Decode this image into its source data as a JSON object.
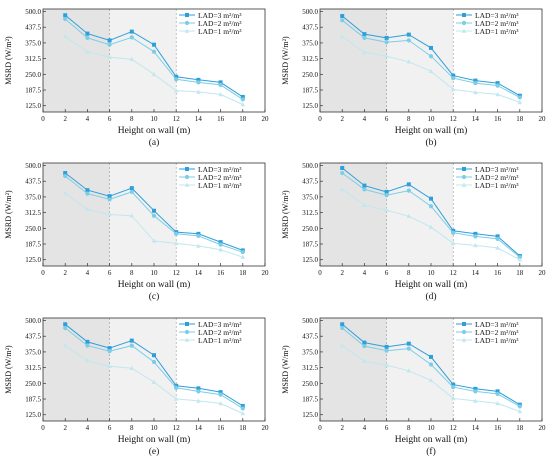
{
  "chart_data": [
    {
      "type": "line",
      "panel_label": "(a)",
      "xlabel": "Height on wall (m)",
      "ylabel": "MSRD (W/m²)",
      "xlim": [
        0,
        20
      ],
      "ylim": [
        100,
        510
      ],
      "xticks": [
        "0",
        "2",
        "4",
        "6",
        "8",
        "10",
        "12",
        "14",
        "16",
        "18",
        "20"
      ],
      "yticks": [
        "125.0",
        "187.5",
        "250.0",
        "312.5",
        "375.0",
        "437.5",
        "500.0"
      ],
      "x": [
        2,
        4,
        6,
        8,
        10,
        12,
        14,
        16,
        18
      ],
      "series": [
        {
          "name": "LAD=3 m²/m³",
          "values": [
            485,
            412,
            385,
            420,
            368,
            240,
            228,
            218,
            160
          ]
        },
        {
          "name": "LAD=2 m²/m³",
          "values": [
            470,
            395,
            368,
            397,
            340,
            230,
            218,
            208,
            150
          ]
        },
        {
          "name": "LAD=1 m²/m³",
          "values": [
            400,
            340,
            318,
            310,
            250,
            185,
            180,
            170,
            130
          ]
        }
      ]
    },
    {
      "type": "line",
      "panel_label": "(b)",
      "xlabel": "Height on wall (m)",
      "ylabel": "MSRD (W/m²)",
      "xlim": [
        0,
        20
      ],
      "ylim": [
        100,
        510
      ],
      "xticks": [
        "0",
        "2",
        "4",
        "6",
        "8",
        "10",
        "12",
        "14",
        "16",
        "18",
        "20"
      ],
      "yticks": [
        "125.0",
        "187.5",
        "250.0",
        "312.5",
        "375.0",
        "437.5",
        "500.0"
      ],
      "x": [
        2,
        4,
        6,
        8,
        10,
        12,
        14,
        16,
        18
      ],
      "series": [
        {
          "name": "LAD=3 m²/m³",
          "values": [
            482,
            410,
            395,
            408,
            355,
            245,
            225,
            215,
            165
          ]
        },
        {
          "name": "LAD=2 m²/m³",
          "values": [
            465,
            395,
            378,
            385,
            322,
            235,
            215,
            205,
            158
          ]
        },
        {
          "name": "LAD=1 m²/m³",
          "values": [
            400,
            338,
            322,
            300,
            262,
            190,
            178,
            170,
            138
          ]
        }
      ]
    },
    {
      "type": "line",
      "panel_label": "(c)",
      "xlabel": "Height on wall (m)",
      "ylabel": "MSRD (W/m²)",
      "xlim": [
        0,
        20
      ],
      "ylim": [
        100,
        510
      ],
      "xticks": [
        "0",
        "2",
        "4",
        "6",
        "8",
        "10",
        "12",
        "14",
        "16",
        "18",
        "20"
      ],
      "yticks": [
        "125.0",
        "187.5",
        "250.0",
        "312.5",
        "375.0",
        "437.5",
        "500.0"
      ],
      "x": [
        2,
        4,
        6,
        8,
        10,
        12,
        14,
        16,
        18
      ],
      "series": [
        {
          "name": "LAD=3 m²/m³",
          "values": [
            470,
            402,
            378,
            410,
            320,
            235,
            228,
            195,
            162
          ]
        },
        {
          "name": "LAD=2 m²/m³",
          "values": [
            458,
            388,
            365,
            395,
            300,
            228,
            220,
            185,
            155
          ]
        },
        {
          "name": "LAD=1 m²/m³",
          "values": [
            390,
            325,
            305,
            300,
            200,
            190,
            180,
            165,
            135
          ]
        }
      ]
    },
    {
      "type": "line",
      "panel_label": "(d)",
      "xlabel": "Height on wall (m)",
      "ylabel": "MSRD (W/m²)",
      "xlim": [
        0,
        20
      ],
      "ylim": [
        100,
        510
      ],
      "xticks": [
        "0",
        "2",
        "4",
        "6",
        "8",
        "10",
        "12",
        "14",
        "16",
        "18",
        "20"
      ],
      "yticks": [
        "125.0",
        "187.5",
        "250.0",
        "312.5",
        "375.0",
        "437.5",
        "500.0"
      ],
      "x": [
        2,
        4,
        6,
        8,
        10,
        12,
        14,
        16,
        18
      ],
      "series": [
        {
          "name": "LAD=3 m²/m³",
          "values": [
            490,
            420,
            395,
            425,
            368,
            240,
            228,
            218,
            140
          ]
        },
        {
          "name": "LAD=2 m²/m³",
          "values": [
            470,
            405,
            382,
            400,
            338,
            232,
            218,
            208,
            135
          ]
        },
        {
          "name": "LAD=1 m²/m³",
          "values": [
            405,
            342,
            322,
            298,
            255,
            190,
            182,
            172,
            125
          ]
        }
      ]
    },
    {
      "type": "line",
      "panel_label": "(e)",
      "xlabel": "Height on wall (m)",
      "ylabel": "MSRD (W/m²)",
      "xlim": [
        0,
        20
      ],
      "ylim": [
        100,
        510
      ],
      "xticks": [
        "0",
        "2",
        "4",
        "6",
        "8",
        "10",
        "12",
        "14",
        "16",
        "18",
        "20"
      ],
      "yticks": [
        "125.0",
        "187.5",
        "250.0",
        "312.5",
        "375.0",
        "437.5",
        "500.0"
      ],
      "x": [
        2,
        4,
        6,
        8,
        10,
        12,
        14,
        16,
        18
      ],
      "series": [
        {
          "name": "LAD=3 m²/m³",
          "values": [
            485,
            415,
            390,
            420,
            362,
            240,
            230,
            215,
            160
          ]
        },
        {
          "name": "LAD=2 m²/m³",
          "values": [
            470,
            400,
            378,
            400,
            335,
            232,
            218,
            205,
            150
          ]
        },
        {
          "name": "LAD=1 m²/m³",
          "values": [
            400,
            340,
            318,
            310,
            255,
            188,
            180,
            170,
            130
          ]
        }
      ]
    },
    {
      "type": "line",
      "panel_label": "(f)",
      "xlabel": "Height on wall (m)",
      "ylabel": "MSRD (W/m²)",
      "xlim": [
        0,
        20
      ],
      "ylim": [
        100,
        510
      ],
      "xticks": [
        "0",
        "2",
        "4",
        "6",
        "8",
        "10",
        "12",
        "14",
        "16",
        "18",
        "20"
      ],
      "yticks": [
        "125.0",
        "187.5",
        "250.0",
        "312.5",
        "375.0",
        "437.5",
        "500.0"
      ],
      "x": [
        2,
        4,
        6,
        8,
        10,
        12,
        14,
        16,
        18
      ],
      "series": [
        {
          "name": "LAD=3 m²/m³",
          "values": [
            485,
            412,
            395,
            408,
            355,
            245,
            228,
            218,
            165
          ]
        },
        {
          "name": "LAD=2 m²/m³",
          "values": [
            470,
            398,
            380,
            388,
            325,
            235,
            218,
            208,
            158
          ]
        },
        {
          "name": "LAD=1 m²/m³",
          "values": [
            400,
            338,
            322,
            300,
            262,
            190,
            180,
            170,
            138
          ]
        }
      ]
    }
  ],
  "colors": {
    "series": [
      "#2e9fd9",
      "#7ccde6",
      "#c1e7ef"
    ],
    "shade_dark": "#e4e4e4",
    "shade_light": "#f1f1f1",
    "axis": "#333333"
  },
  "markers": [
    "square",
    "circle",
    "triangle"
  ]
}
